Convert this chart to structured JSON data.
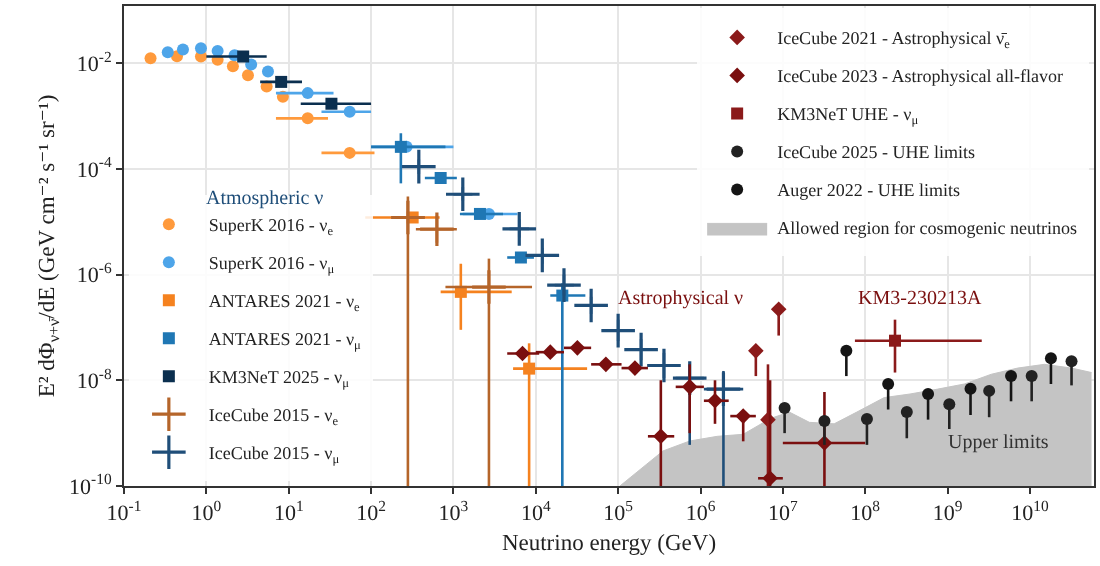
{
  "chart_data": {
    "type": "scatter",
    "xlabel": "Neutrino energy (GeV)",
    "ylabel": "E² dΦ$_{ν+ν̄}$/dE (GeV cm⁻² s⁻¹ sr⁻¹)",
    "log": "xy",
    "grid": true,
    "legend": "bottom left",
    "xlim": [
      0.1,
      60000000000.0
    ],
    "ylim": [
      1e-10,
      0.12
    ],
    "xticks": [
      {
        "value": 0.1,
        "label": "10$^{-1}$"
      },
      {
        "value": 1,
        "label": "10$^{0}$"
      },
      {
        "value": 10,
        "label": "10$^{1}$"
      },
      {
        "value": 100,
        "label": "10$^{2}$"
      },
      {
        "value": 1000,
        "label": "10$^{3}$"
      },
      {
        "value": 10000,
        "label": "10$^{4}$"
      },
      {
        "value": 100000,
        "label": "10$^{5}$"
      },
      {
        "value": 1000000,
        "label": "10$^{6}$"
      },
      {
        "value": 10000000,
        "label": "10$^{7}$"
      },
      {
        "value": 100000000,
        "label": "10$^{8}$"
      },
      {
        "value": 1000000000,
        "label": "10$^{9}$"
      },
      {
        "value": 10000000000,
        "label": "10$^{10}$"
      }
    ],
    "yticks": [
      {
        "value": 1e-10,
        "label": "10$^{-10}$"
      },
      {
        "value": 1e-08,
        "label": "10$^{-8}$"
      },
      {
        "value": 1e-06,
        "label": "10$^{-6}$"
      },
      {
        "value": 0.0001,
        "label": "10$^{-4}$"
      },
      {
        "value": 0.01,
        "label": "10$^{-2}$"
      }
    ],
    "annotations": [
      "Atmospheric ν",
      "Astrophysical ν",
      "KM3-230213A",
      "Upper limits"
    ],
    "series": [
      {
        "name": "SuperK 2016 - ν$_{e}$",
        "color": "#ff9a3c",
        "marker": "circle",
        "x": [
          0.21,
          0.44,
          0.86,
          1.37,
          2.1,
          3.2,
          5.4,
          8.5,
          17,
          55
        ],
        "values": [
          0.0123,
          0.0135,
          0.0133,
          0.0115,
          0.0087,
          0.0059,
          0.0036,
          0.0023,
          0.0009,
          0.0002
        ],
        "xerrors": [
          null,
          null,
          null,
          null,
          null,
          null,
          null,
          null,
          [
            7,
            30
          ],
          [
            25,
            110
          ]
        ]
      },
      {
        "name": "SuperK 2016 - ν$_{μ}$",
        "color": "#4ea5e9",
        "marker": "circle",
        "x": [
          0.34,
          0.52,
          0.86,
          1.37,
          2.2,
          3.5,
          5.6,
          17,
          55,
          270,
          2700
        ],
        "values": [
          0.016,
          0.018,
          0.019,
          0.017,
          0.014,
          0.0094,
          0.0069,
          0.0027,
          0.0012,
          0.00026,
          1.4e-05
        ],
        "xerrors": [
          null,
          null,
          null,
          null,
          null,
          null,
          null,
          [
            7,
            35
          ],
          [
            25,
            100
          ],
          [
            100,
            1000
          ],
          [
            1300,
            6000
          ]
        ]
      },
      {
        "name": "ANTARES 2021 - ν$_{e}$",
        "color": "#f5821f",
        "marker": "square",
        "x": [
          320,
          1230,
          8300
        ],
        "values": [
          1.2e-05,
          4.7e-07,
          1.66e-08
        ],
        "xerrors": [
          [
            85,
            680
          ],
          [
            700,
            5100
          ],
          [
            5300,
            42000
          ]
        ],
        "errors": [
          null,
          [
            9e-08,
            1.6e-06
          ],
          [
            1e-10,
            5e-08
          ]
        ]
      },
      {
        "name": "ANTARES 2021 - ν$_{μ}$",
        "color": "#1f77b4",
        "marker": "square",
        "x": [
          230,
          700,
          2100,
          6600,
          21000
        ],
        "values": [
          0.00026,
          6.7e-05,
          1.4e-05,
          2.1e-06,
          4e-07
        ],
        "xerrors": [
          [
            100,
            800
          ],
          [
            450,
            1100
          ],
          [
            1200,
            4000
          ],
          [
            4500,
            9500
          ],
          [
            15000,
            40000
          ]
        ],
        "errors": [
          [
            5.3e-05,
            0.00047
          ],
          null,
          null,
          null,
          [
            1e-10,
            6.8e-07
          ]
        ]
      },
      {
        "name": "KM3NeT 2025 - ν$_{μ}$",
        "color": "#0b2f4f",
        "marker": "square",
        "x": [
          2.8,
          8.1,
          33
        ],
        "values": [
          0.0133,
          0.0044,
          0.0017
        ],
        "xerrors": [
          [
            1,
            5.4
          ],
          [
            4.5,
            14.5
          ],
          [
            14,
            100
          ]
        ]
      },
      {
        "name": "IceCube 2015 - ν$_{e}$",
        "color": "#b5652a",
        "marker": "cross",
        "x": [
          280,
          630,
          2700
        ],
        "values": [
          1.2e-05,
          7.2e-06,
          5.8e-07
        ],
        "xerrors": [
          [
            200,
            450
          ],
          [
            350,
            1100
          ],
          [
            800,
            9000
          ]
        ],
        "errors": [
          [
            1e-10,
            3e-05
          ],
          [
            4e-06,
            1.3e-05
          ],
          [
            1e-10,
            2e-06
          ]
        ]
      },
      {
        "name": "IceCube 2015 - ν$_{μ}$",
        "color": "#1f4e79",
        "marker": "cross",
        "x": [
          380,
          1300,
          6300,
          12000,
          22000,
          47000,
          100000,
          190000,
          360000,
          740000,
          1900000
        ],
        "values": [
          0.00011,
          3.3e-05,
          7.3e-06,
          2.3e-06,
          6.3e-07,
          2.6e-07,
          8.7e-08,
          3.8e-08,
          1.9e-08,
          1.1e-08,
          6.8e-09
        ],
        "xerrors": [
          [
            290,
            500
          ],
          [
            1000,
            1700
          ],
          [
            4800,
            8300
          ],
          [
            9000,
            16000
          ],
          [
            17000,
            29000
          ],
          [
            35000,
            62000
          ],
          [
            75000,
            135000
          ],
          [
            140000,
            260000
          ],
          [
            260000,
            500000
          ],
          [
            500000,
            1100000
          ],
          [
            1100000,
            3300000
          ]
        ],
        "errors": [
          [
            8e-05,
            0.00015
          ],
          [
            2.5e-05,
            4.5e-05
          ],
          [
            5e-06,
            1.1e-05
          ],
          [
            1.6e-06,
            3.2e-06
          ],
          [
            4e-07,
            1e-06
          ],
          [
            1.8e-07,
            3.8e-07
          ],
          [
            5.5e-08,
            1.4e-07
          ],
          [
            2.4e-08,
            6e-08
          ],
          [
            1.1e-08,
            3.3e-08
          ],
          [
            6e-10,
            2e-08
          ],
          [
            1e-10,
            1.5e-08
          ]
        ]
      },
      {
        "name": "IceCube 2021 - Astrophysical ν̄$_{e}$",
        "color": "#8b1a1a",
        "marker": "diamond",
        "x": [
          4700000,
          6600000,
          8900000
        ],
        "values": [
          3.6e-08,
          1.8e-09,
          2.2e-07
        ],
        "errors": [
          [
            1.2e-08,
            3.6e-08
          ],
          [
            1e-10,
            2e-08
          ],
          [
            7e-08,
            2.2e-07
          ]
        ]
      },
      {
        "name": "IceCube 2023 - Astrophysical all-flavor",
        "color": "#7a0f0f",
        "marker": "diamond",
        "x": [
          6900,
          15000,
          32000,
          71000,
          160000,
          330000,
          740000,
          1500000,
          3300000,
          7000000,
          32000000
        ],
        "values": [
          3.2e-08,
          3.4e-08,
          4.1e-08,
          2e-08,
          1.7e-08,
          8.7e-10,
          7.5e-09,
          4.1e-09,
          2.1e-09,
          1.4e-10,
          6.5e-10
        ],
        "xerrors": [
          [
            4500,
            11000
          ],
          [
            10000,
            22000
          ],
          [
            22000,
            47000
          ],
          [
            47000,
            110000
          ],
          [
            110000,
            230000
          ],
          [
            230000,
            480000
          ],
          [
            500000,
            1100000
          ],
          [
            1100000,
            2200000
          ],
          [
            2300000,
            4700000
          ],
          [
            5000000,
            10000000
          ],
          [
            10000000,
            100000000
          ]
        ],
        "errors": [
          null,
          null,
          null,
          null,
          null,
          [
            1e-10,
            1e-08
          ],
          [
            1e-09,
            2e-08
          ],
          [
            1.5e-09,
            1e-08
          ],
          [
            7e-10,
            2.1e-09
          ],
          [
            1e-10,
            1e-08
          ],
          [
            1e-10,
            6e-09
          ]
        ]
      },
      {
        "name": "KM3NeT UHE - ν$_{μ}$",
        "color": "#8b1a1a",
        "marker": "square",
        "x": [
          230000000
        ],
        "values": [
          5.6e-08
        ],
        "xerrors": [
          [
            75000000,
            2600000000
          ]
        ],
        "errors": [
          [
            1.4e-08,
            1.4e-07
          ]
        ]
      },
      {
        "name": "IceCube 2025 - UHE limits",
        "color": "#222222",
        "marker": "circle",
        "x": [
          10500000,
          32000000,
          105000000,
          320000000,
          1050000000,
          3200000000,
          10500000000,
          32000000000
        ],
        "values": [
          3e-09,
          1.7e-09,
          1.85e-09,
          2.5e-09,
          3.5e-09,
          6.3e-09,
          1.2e-08,
          2.3e-08
        ],
        "errors": [
          [
            1e-09,
            3e-09
          ],
          [
            6e-10,
            1.7e-09
          ],
          [
            6e-10,
            1.85e-09
          ],
          [
            8e-10,
            2.5e-09
          ],
          [
            1.1e-09,
            3.5e-09
          ],
          [
            2e-09,
            6.3e-09
          ],
          [
            4e-09,
            1.2e-08
          ],
          [
            8e-09,
            2.3e-08
          ]
        ]
      },
      {
        "name": "Auger 2022 - UHE limits",
        "color": "#151515",
        "marker": "circle",
        "x": [
          59000000,
          190000000,
          580000000,
          1900000000,
          5900000000,
          18000000000
        ],
        "values": [
          3.6e-08,
          8.5e-09,
          5.5e-09,
          6.9e-09,
          1.2e-08,
          2.6e-08
        ],
        "errors": [
          [
            1.2e-08,
            3.6e-08
          ],
          [
            2.8e-09,
            8.5e-09
          ],
          [
            1.8e-09,
            5.5e-09
          ],
          [
            2.2e-09,
            6.9e-09
          ],
          [
            4e-09,
            1.2e-08
          ],
          [
            8.5e-09,
            2.6e-08
          ]
        ]
      },
      {
        "name": "Allowed region for cosmogenic neutrinos",
        "type": "area",
        "color": "#c4c4c4",
        "x": [
          105000,
          350000,
          740000,
          1600000,
          3300000,
          7100000,
          12000000,
          21000000,
          42000000,
          79000000,
          170000000,
          350000000,
          760000000,
          1600000000,
          3400000000,
          7100000000,
          15000000000,
          32000000000,
          56000000000
        ],
        "values": [
          1e-10,
          4.6e-10,
          7.1e-10,
          8.7e-10,
          9.5e-10,
          1.9e-09,
          2.5e-09,
          1.6e-09,
          1.5e-09,
          2.5e-09,
          4.7e-09,
          5.5e-09,
          6.8e-09,
          8.5e-09,
          1.3e-08,
          1.7e-08,
          2e-08,
          1.7e-08,
          1.4e-08
        ]
      }
    ]
  }
}
